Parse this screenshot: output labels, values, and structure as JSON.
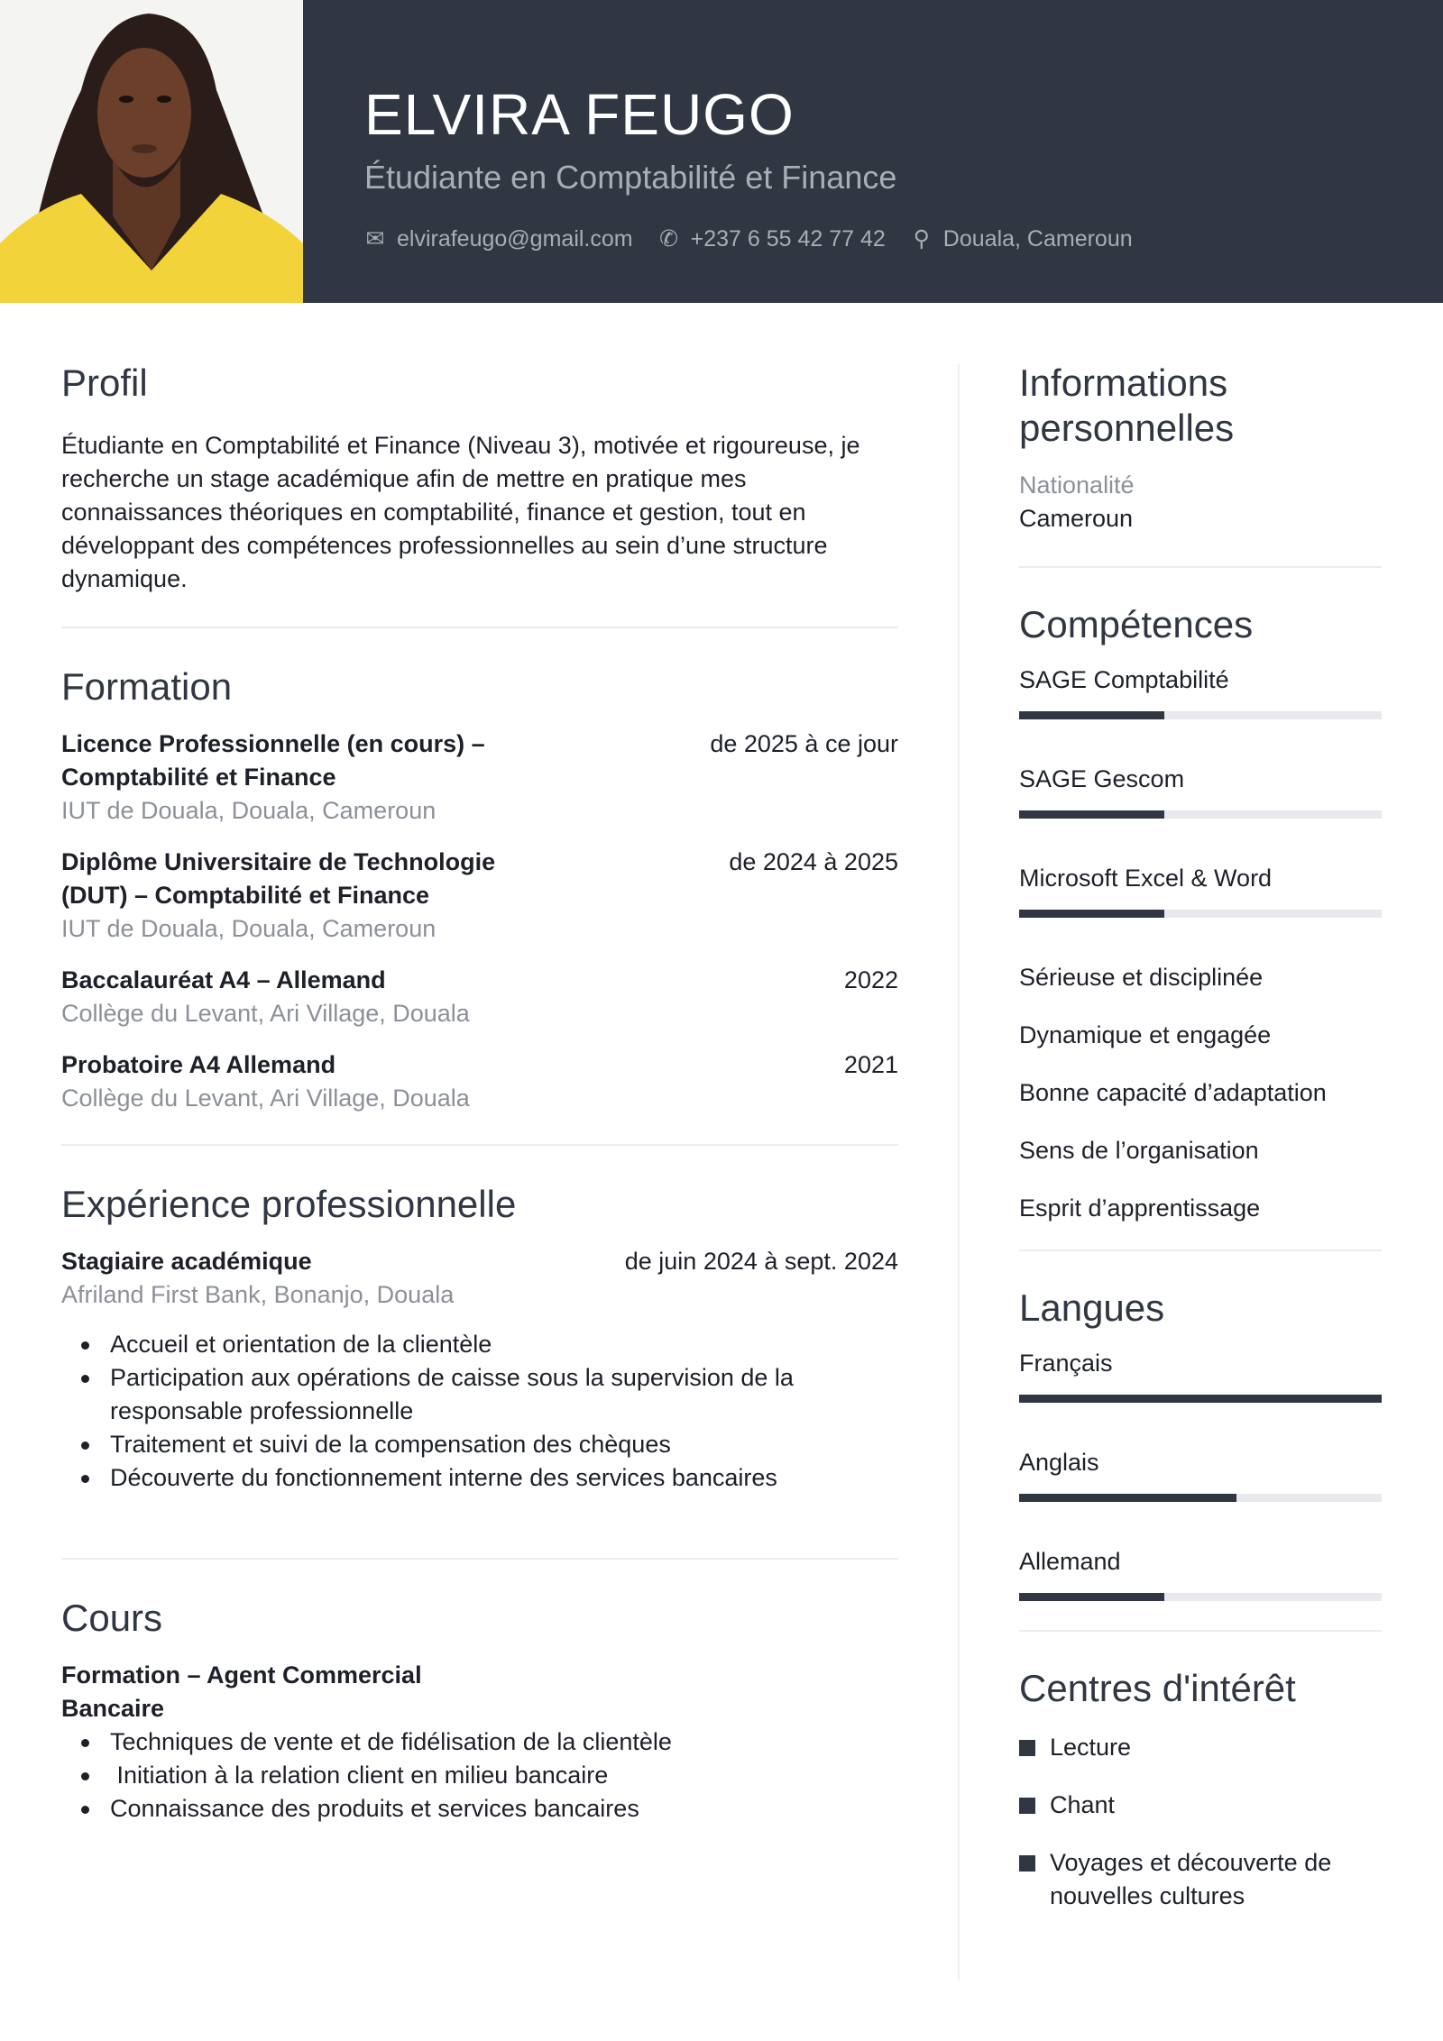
{
  "header": {
    "name": "ELVIRA FEUGO",
    "title": "Étudiante en Comptabilité et Finance",
    "email": "elvirafeugo@gmail.com",
    "phone": "+237 6 55 42 77 42",
    "location": "Douala, Cameroun"
  },
  "colors": {
    "header_bg": "#303642",
    "accent": "#303642"
  },
  "profil": {
    "heading": "Profil",
    "text": "Étudiante en Comptabilité et Finance (Niveau 3), motivée et rigoureuse, je recherche un stage académique afin de mettre en pratique mes connaissances théoriques en comptabilité, finance et gestion, tout en développant des compétences professionnelles au sein d’une structure dynamique."
  },
  "formation": {
    "heading": "Formation",
    "entries": [
      {
        "title": "Licence Professionnelle (en cours) – Comptabilité et Finance",
        "date": "de 2025 à ce jour",
        "place": "IUT de Douala, Douala, Cameroun"
      },
      {
        "title": "Diplôme Universitaire de Technologie (DUT) – Comptabilité et Finance",
        "date": "de 2024 à 2025",
        "place": "IUT de Douala, Douala, Cameroun"
      },
      {
        "title": "Baccalauréat A4 – Allemand",
        "date": "2022",
        "place": "Collège du Levant, Ari Village, Douala"
      },
      {
        "title": "Probatoire A4 Allemand",
        "date": "2021",
        "place": "Collège du Levant, Ari Village, Douala"
      }
    ]
  },
  "experience": {
    "heading": "Expérience professionnelle",
    "title": "Stagiaire académique",
    "date": "de juin 2024 à sept. 2024",
    "place": "Afriland First Bank, Bonanjo, Douala",
    "bullets": [
      "Accueil et orientation de la clientèle",
      "Participation aux opérations de caisse sous la supervision de la responsable professionnelle",
      "Traitement et suivi de la compensation des chèques",
      "Découverte du fonctionnement interne des services bancaires"
    ]
  },
  "cours": {
    "heading": "Cours",
    "title": "Formation – Agent Commercial Bancaire",
    "bullets": [
      "Techniques de vente et de fidélisation de la clientèle",
      " Initiation à la relation client en milieu bancaire",
      "Connaissance des produits et services bancaires"
    ]
  },
  "infos": {
    "heading": "Informations personnelles",
    "label": "Nationalité",
    "value": "Cameroun"
  },
  "competences": {
    "heading": "Compétences",
    "skills": [
      {
        "name": "SAGE Comptabilité",
        "level": 40
      },
      {
        "name": "SAGE Gescom",
        "level": 40
      },
      {
        "name": "Microsoft Excel & Word",
        "level": 40
      }
    ],
    "soft": [
      "Sérieuse et disciplinée",
      "Dynamique et engagée",
      "Bonne capacité d’adaptation",
      "Sens de l’organisation",
      "Esprit d’apprentissage"
    ]
  },
  "langues": {
    "heading": "Langues",
    "items": [
      {
        "name": "Français",
        "level": 100
      },
      {
        "name": "Anglais",
        "level": 60
      },
      {
        "name": "Allemand",
        "level": 40
      }
    ]
  },
  "interets": {
    "heading": "Centres d'intérêt",
    "items": [
      "Lecture",
      "Chant",
      "Voyages et découverte de nouvelles cultures"
    ]
  }
}
